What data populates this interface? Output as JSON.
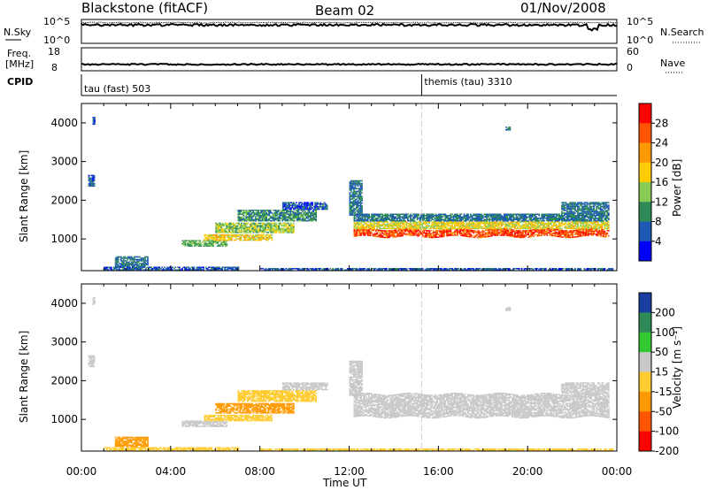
{
  "header": {
    "title": "Blackstone (fitACF)",
    "beam": "Beam 02",
    "date": "01/Nov/2008"
  },
  "panels": {
    "nsky_label": "N.Sky",
    "nsearch_label": "N.Search",
    "nsky_ticks": [
      "10^5",
      "10^0"
    ],
    "nsearch_ticks": [
      "10^5",
      "10^0"
    ],
    "freq_label_1": "Freq.",
    "freq_label_2": "[MHz]",
    "freq_ticks": [
      "18",
      "8"
    ],
    "nave_label": "Nave",
    "nave_ticks": [
      "60",
      "0"
    ],
    "cpid_label": "CPID",
    "cpid_segments": [
      {
        "label": "tau (fast) 503",
        "start_hour": 0
      },
      {
        "label": "themis (tau) 3310",
        "start_hour": 15.25
      }
    ]
  },
  "power_colorbar": {
    "label": "Power [dB]",
    "ticks": [
      "28",
      "24",
      "20",
      "16",
      "12",
      "8",
      "4"
    ],
    "colors": [
      "#ff0000",
      "#ff5500",
      "#ff9900",
      "#ffcc00",
      "#88cc55",
      "#2e8b57",
      "#1e5ab4",
      "#0000ff"
    ]
  },
  "velocity_colorbar": {
    "label": "Velocity [m s⁻¹]",
    "ticks": [
      "200",
      "100",
      "50",
      "15",
      "-15",
      "-50",
      "-100",
      "-200"
    ],
    "colors": [
      "#1a3ea0",
      "#2e8b57",
      "#32c832",
      "#c8c8c8",
      "#ffcc33",
      "#ff9900",
      "#ff5500",
      "#ff0000"
    ]
  },
  "chart_data": [
    {
      "type": "heatmap",
      "quantity": "Power",
      "ylabel": "Slant Range [km]",
      "xlabel": "Time UT",
      "x_ticks": [
        "00:00",
        "04:00",
        "08:00",
        "12:00",
        "16:00",
        "20:00",
        "00:00"
      ],
      "xlim_hours": [
        0,
        24
      ],
      "ylim": [
        180,
        4500
      ],
      "y_ticks": [
        1000,
        2000,
        3000,
        4000
      ],
      "color_ticks": [
        4,
        8,
        12,
        16,
        20,
        24,
        28
      ],
      "color_range": [
        0,
        32
      ],
      "regions": [
        {
          "t_start": 0.3,
          "t_end": 0.6,
          "r_min": 2350,
          "r_max": 2650,
          "value": 6
        },
        {
          "t_start": 0.5,
          "t_end": 0.6,
          "r_min": 3950,
          "r_max": 4150,
          "value": 6
        },
        {
          "t_start": 1.5,
          "t_end": 3.0,
          "r_min": 280,
          "r_max": 550,
          "value": 8
        },
        {
          "t_start": 1.0,
          "t_end": 7.0,
          "r_min": 180,
          "r_max": 250,
          "value": 6
        },
        {
          "t_start": 4.5,
          "t_end": 6.5,
          "r_min": 800,
          "r_max": 950,
          "value": 12
        },
        {
          "t_start": 5.5,
          "t_end": 8.5,
          "r_min": 950,
          "r_max": 1120,
          "value": 18
        },
        {
          "t_start": 6.0,
          "t_end": 9.5,
          "r_min": 1150,
          "r_max": 1400,
          "value": 14
        },
        {
          "t_start": 7.0,
          "t_end": 10.5,
          "r_min": 1450,
          "r_max": 1750,
          "value": 10
        },
        {
          "t_start": 9.0,
          "t_end": 11.0,
          "r_min": 1750,
          "r_max": 1950,
          "value": 6
        },
        {
          "t_start": 12.0,
          "t_end": 12.6,
          "r_min": 1600,
          "r_max": 2500,
          "value": 8
        },
        {
          "t_start": 12.2,
          "t_end": 23.6,
          "r_min": 1050,
          "r_max": 1250,
          "value": 27
        },
        {
          "t_start": 12.2,
          "t_end": 23.6,
          "r_min": 1250,
          "r_max": 1450,
          "value": 17
        },
        {
          "t_start": 12.2,
          "t_end": 23.6,
          "r_min": 1450,
          "r_max": 1650,
          "value": 8
        },
        {
          "t_start": 21.5,
          "t_end": 23.6,
          "r_min": 1650,
          "r_max": 1950,
          "value": 8
        },
        {
          "t_start": 19.0,
          "t_end": 19.2,
          "r_min": 3800,
          "r_max": 3900,
          "value": 8
        },
        {
          "t_start": 8.0,
          "t_end": 23.8,
          "r_min": 180,
          "r_max": 230,
          "value": 6
        }
      ]
    },
    {
      "type": "heatmap",
      "quantity": "Velocity",
      "ylabel": "Slant Range [km]",
      "xlabel": "Time UT",
      "x_ticks": [
        "00:00",
        "04:00",
        "08:00",
        "12:00",
        "16:00",
        "20:00",
        "00:00"
      ],
      "xlim_hours": [
        0,
        24
      ],
      "ylim": [
        180,
        4500
      ],
      "y_ticks": [
        1000,
        2000,
        3000,
        4000
      ],
      "color_ticks": [
        -200,
        -100,
        -50,
        -15,
        15,
        50,
        100,
        200
      ],
      "regions": [
        {
          "t_start": 0.3,
          "t_end": 0.6,
          "r_min": 2350,
          "r_max": 2650,
          "value": 0
        },
        {
          "t_start": 0.5,
          "t_end": 0.6,
          "r_min": 3950,
          "r_max": 4150,
          "value": 0
        },
        {
          "t_start": 1.5,
          "t_end": 3.0,
          "r_min": 280,
          "r_max": 550,
          "value": -60
        },
        {
          "t_start": 1.0,
          "t_end": 7.0,
          "r_min": 180,
          "r_max": 250,
          "value": -40
        },
        {
          "t_start": 4.5,
          "t_end": 6.5,
          "r_min": 800,
          "r_max": 950,
          "value": 0
        },
        {
          "t_start": 5.5,
          "t_end": 8.5,
          "r_min": 950,
          "r_max": 1120,
          "value": -40
        },
        {
          "t_start": 6.0,
          "t_end": 9.5,
          "r_min": 1150,
          "r_max": 1400,
          "value": -70
        },
        {
          "t_start": 7.0,
          "t_end": 10.5,
          "r_min": 1450,
          "r_max": 1750,
          "value": -40
        },
        {
          "t_start": 9.0,
          "t_end": 11.0,
          "r_min": 1750,
          "r_max": 1950,
          "value": 0
        },
        {
          "t_start": 12.0,
          "t_end": 12.6,
          "r_min": 1600,
          "r_max": 2500,
          "value": 0
        },
        {
          "t_start": 12.2,
          "t_end": 23.6,
          "r_min": 1050,
          "r_max": 1650,
          "value": 0
        },
        {
          "t_start": 21.5,
          "t_end": 23.6,
          "r_min": 1650,
          "r_max": 1950,
          "value": 0
        },
        {
          "t_start": 19.0,
          "t_end": 19.2,
          "r_min": 3800,
          "r_max": 3900,
          "value": 0
        },
        {
          "t_start": 8.0,
          "t_end": 23.8,
          "r_min": 180,
          "r_max": 230,
          "value": -30
        }
      ]
    }
  ]
}
